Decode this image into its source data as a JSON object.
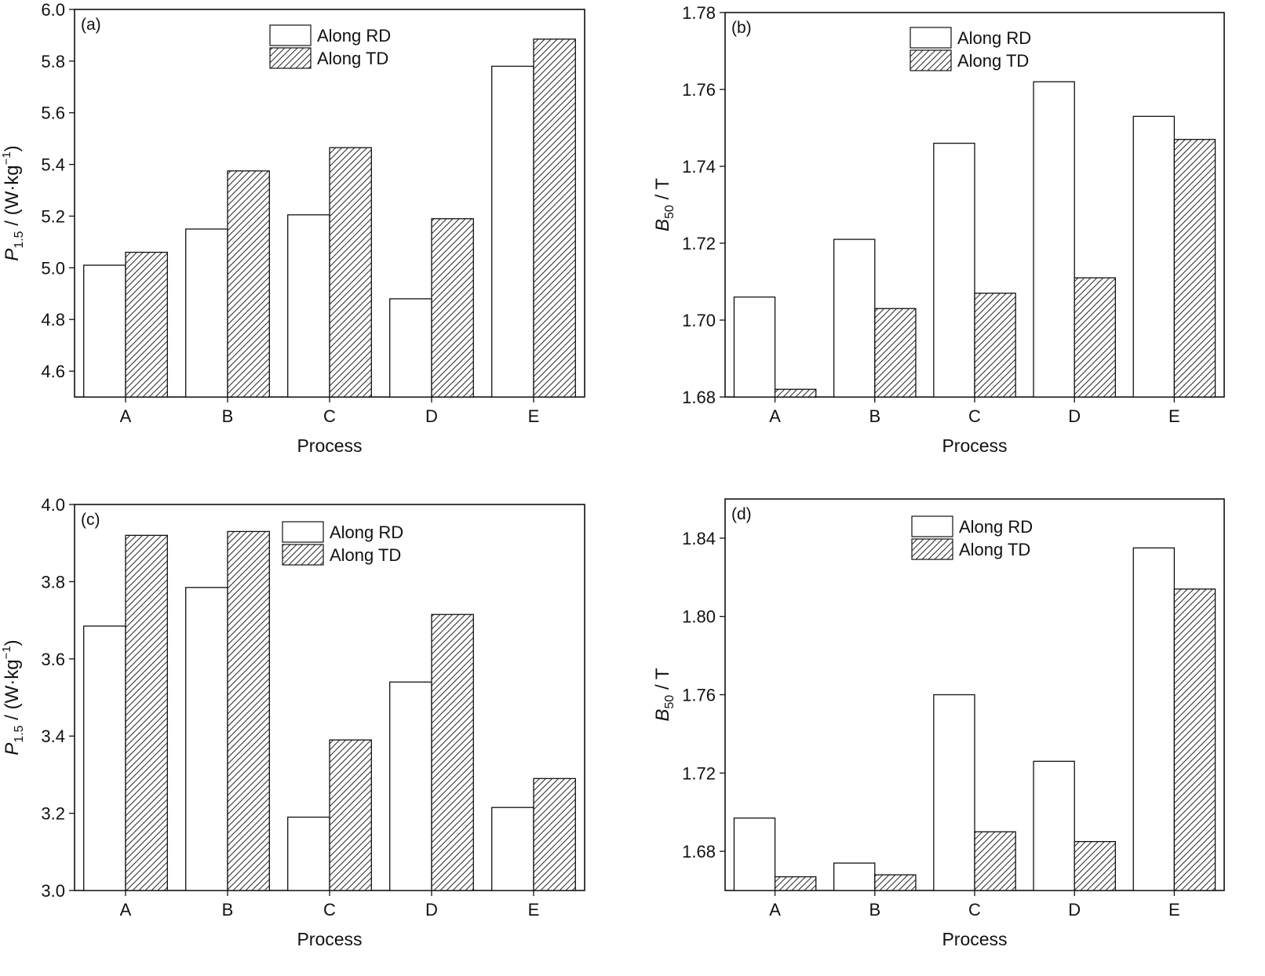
{
  "chart_data": [
    {
      "type": "bar",
      "panel_label": "(a)",
      "categories": [
        "A",
        "B",
        "C",
        "D",
        "E"
      ],
      "series": [
        {
          "name": "Along RD",
          "values": [
            5.01,
            5.15,
            5.205,
            4.88,
            5.78
          ],
          "fill": "open"
        },
        {
          "name": "Along TD",
          "values": [
            5.06,
            5.375,
            5.465,
            5.19,
            5.885
          ],
          "fill": "hatched"
        }
      ],
      "xlabel": "Process",
      "ylabel_main": "P",
      "ylabel_sub": "1.5",
      "ylabel_unit": " / (W·kg",
      "ylabel_sup": "−1",
      "ylabel_tail": ")",
      "ylim": [
        4.5,
        6.0
      ],
      "yticks": [
        4.6,
        4.8,
        5.0,
        5.2,
        5.4,
        5.6,
        5.8,
        6.0
      ],
      "ytick_labels": [
        "4.6",
        "4.8",
        "5.0",
        "5.2",
        "5.4",
        "5.6",
        "5.8",
        "6.0"
      ],
      "legend_position": "top-center",
      "grid": false
    },
    {
      "type": "bar",
      "panel_label": "(b)",
      "categories": [
        "A",
        "B",
        "C",
        "D",
        "E"
      ],
      "series": [
        {
          "name": "Along RD",
          "values": [
            1.706,
            1.721,
            1.746,
            1.762,
            1.753
          ],
          "fill": "open"
        },
        {
          "name": "Along TD",
          "values": [
            1.682,
            1.703,
            1.707,
            1.711,
            1.747
          ],
          "fill": "hatched"
        }
      ],
      "xlabel": "Process",
      "ylabel_main": "B",
      "ylabel_sub": "50",
      "ylabel_unit": " / T",
      "ylabel_sup": "",
      "ylabel_tail": "",
      "ylim": [
        1.68,
        1.78
      ],
      "yticks": [
        1.68,
        1.7,
        1.72,
        1.74,
        1.76,
        1.78
      ],
      "ytick_labels": [
        "1.68",
        "1.70",
        "1.72",
        "1.74",
        "1.76",
        "1.78"
      ],
      "legend_position": "top-center",
      "grid": false
    },
    {
      "type": "bar",
      "panel_label": "(c)",
      "categories": [
        "A",
        "B",
        "C",
        "D",
        "E"
      ],
      "series": [
        {
          "name": "Along RD",
          "values": [
            3.685,
            3.785,
            3.19,
            3.54,
            3.215
          ],
          "fill": "open"
        },
        {
          "name": "Along TD",
          "values": [
            3.92,
            3.93,
            3.39,
            3.715,
            3.29
          ],
          "fill": "hatched"
        }
      ],
      "xlabel": "Process",
      "ylabel_main": "P",
      "ylabel_sub": "1.5",
      "ylabel_unit": " / (W·kg",
      "ylabel_sup": "−1",
      "ylabel_tail": ")",
      "ylim": [
        3.0,
        4.0
      ],
      "yticks": [
        3.0,
        3.2,
        3.4,
        3.6,
        3.8,
        4.0
      ],
      "ytick_labels": [
        "3.0",
        "3.2",
        "3.4",
        "3.6",
        "3.8",
        "4.0"
      ],
      "legend_position": "top-center",
      "grid": false
    },
    {
      "type": "bar",
      "panel_label": "(d)",
      "categories": [
        "A",
        "B",
        "C",
        "D",
        "E"
      ],
      "series": [
        {
          "name": "Along RD",
          "values": [
            1.697,
            1.674,
            1.76,
            1.726,
            1.835
          ],
          "fill": "open"
        },
        {
          "name": "Along TD",
          "values": [
            1.667,
            1.668,
            1.69,
            1.685,
            1.814
          ],
          "fill": "hatched"
        }
      ],
      "xlabel": "Process",
      "ylabel_main": "B",
      "ylabel_sub": "50",
      "ylabel_unit": " / T",
      "ylabel_sup": "",
      "ylabel_tail": "",
      "ylim": [
        1.66,
        1.86
      ],
      "yticks": [
        1.68,
        1.72,
        1.76,
        1.8,
        1.84
      ],
      "ytick_labels": [
        "1.68",
        "1.72",
        "1.76",
        "1.80",
        "1.84"
      ],
      "legend_position": "top-center",
      "grid": false
    }
  ],
  "colors": {
    "axis": "#111111",
    "bar_fill_open": "#ffffff",
    "hatch": "#333333"
  }
}
